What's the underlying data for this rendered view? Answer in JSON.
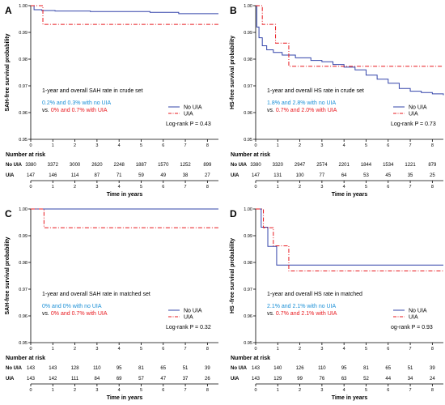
{
  "colors": {
    "no_uia": "#3344aa",
    "uia": "#e8191f",
    "blue_text": "#1a8fd6",
    "axis": "#000000"
  },
  "chart_data": [
    {
      "type": "line",
      "panel_label": "A",
      "ylabel": "SAH-free survival probability",
      "xlabel": "Time in years",
      "ylim": [
        0.95,
        1.0
      ],
      "xlim": [
        0,
        8.5
      ],
      "yticks": [
        "0.95",
        "0.96",
        "0.97",
        "0.98",
        "0.99",
        "1.00"
      ],
      "xticks": [
        "0",
        "1",
        "2",
        "3",
        "4",
        "5",
        "6",
        "7",
        "8"
      ],
      "grid": false,
      "legend_position": "bottom-right",
      "series": [
        {
          "name": "No UIA",
          "style": "solid",
          "x": [
            0,
            0.15,
            0.5,
            1.1,
            2.7,
            5.4,
            6.7,
            8.5
          ],
          "y": [
            1.0,
            0.9985,
            0.9982,
            0.998,
            0.9978,
            0.9975,
            0.997,
            0.997
          ]
        },
        {
          "name": "UIA",
          "style": "dash-dot",
          "x": [
            0,
            0.55,
            8.5
          ],
          "y": [
            1.0,
            0.993,
            0.993
          ]
        }
      ],
      "set_title": "1-year and overall SAH rate in crude set",
      "rate_no_uia": "0.2% and 0.3%  with no UIA",
      "rate_uia_prefix": "vs.",
      "rate_uia": " 0% and 0.7% with UIA",
      "logrank": "Log-rank P = 0.43",
      "risk_title": "Number at risk",
      "risk_labels": [
        "No UIA",
        "UIA"
      ],
      "risk_no_uia": [
        "3380",
        "3372",
        "3000",
        "2620",
        "2248",
        "1887",
        "1570",
        "1252",
        "899"
      ],
      "risk_uia": [
        "147",
        "146",
        "114",
        "87",
        "71",
        "59",
        "49",
        "38",
        "27"
      ]
    },
    {
      "type": "line",
      "panel_label": "B",
      "ylabel": "HS-free survival probability",
      "xlabel": "Time in years",
      "ylim": [
        0.95,
        1.0
      ],
      "xlim": [
        0,
        8.5
      ],
      "yticks": [
        "0.95",
        "0.96",
        "0.97",
        "0.98",
        "0.99",
        "1.00"
      ],
      "xticks": [
        "0",
        "1",
        "2",
        "3",
        "4",
        "5",
        "6",
        "7",
        "8"
      ],
      "grid": false,
      "legend_position": "bottom-right",
      "series": [
        {
          "name": "No UIA",
          "style": "solid",
          "x": [
            0,
            0.05,
            0.15,
            0.3,
            0.5,
            0.8,
            1.2,
            1.8,
            2.5,
            3.0,
            3.5,
            4.0,
            4.5,
            5.0,
            5.5,
            6.0,
            6.5,
            7.0,
            7.5,
            8.0,
            8.5
          ],
          "y": [
            1.0,
            0.992,
            0.988,
            0.985,
            0.9835,
            0.9825,
            0.9815,
            0.9805,
            0.9795,
            0.979,
            0.978,
            0.977,
            0.976,
            0.974,
            0.9725,
            0.971,
            0.969,
            0.968,
            0.9675,
            0.967,
            0.9665
          ]
        },
        {
          "name": "UIA",
          "style": "dash-dot",
          "x": [
            0,
            0.3,
            0.9,
            1.5,
            8.5
          ],
          "y": [
            1.0,
            0.993,
            0.986,
            0.9773,
            0.9773
          ]
        }
      ],
      "set_title": "1-year and overall HS rate in crude set",
      "rate_no_uia": "1.8% and 2.8%  with no UIA",
      "rate_uia_prefix": "vs.",
      "rate_uia": " 0.7% and 2.0% with UIA",
      "logrank": "Log-rank P = 0.73",
      "risk_title": "Number at risk",
      "risk_labels": [
        "No UIA",
        "UIA"
      ],
      "risk_no_uia": [
        "3380",
        "3320",
        "2947",
        "2574",
        "2201",
        "1844",
        "1534",
        "1221",
        "879"
      ],
      "risk_uia": [
        "147",
        "131",
        "100",
        "77",
        "64",
        "53",
        "45",
        "35",
        "25"
      ]
    },
    {
      "type": "line",
      "panel_label": "C",
      "ylabel": "SAH-free survival probability",
      "xlabel": "Time in years",
      "ylim": [
        0.95,
        1.0
      ],
      "xlim": [
        0,
        8.5
      ],
      "yticks": [
        "0.95",
        "0.96",
        "0.97",
        "0.98",
        "0.99",
        "1.00"
      ],
      "xticks": [
        "0",
        "1",
        "2",
        "3",
        "4",
        "5",
        "6",
        "7",
        "8"
      ],
      "grid": false,
      "legend_position": "bottom-right",
      "series": [
        {
          "name": "No UIA",
          "style": "solid",
          "x": [
            0,
            8.5
          ],
          "y": [
            1.0,
            1.0
          ]
        },
        {
          "name": "UIA",
          "style": "dash-dot",
          "x": [
            0,
            0.6,
            8.5
          ],
          "y": [
            1.0,
            0.993,
            0.993
          ]
        }
      ],
      "set_title": "1-year and overall SAH rate in matched set",
      "rate_no_uia": "0% and 0%  with no UIA",
      "rate_uia_prefix": "vs.",
      "rate_uia": " 0% and 0.7% with UIA",
      "logrank": "Log-rank P = 0.32",
      "risk_title": "Number at risk",
      "risk_labels": [
        "No UIA",
        "UIA"
      ],
      "risk_no_uia": [
        "143",
        "143",
        "128",
        "110",
        "95",
        "81",
        "65",
        "51",
        "39"
      ],
      "risk_uia": [
        "143",
        "142",
        "111",
        "84",
        "69",
        "57",
        "47",
        "37",
        "26"
      ]
    },
    {
      "type": "line",
      "panel_label": "D",
      "ylabel": "HS -free survival probability",
      "xlabel": "Time in years",
      "ylim": [
        0.95,
        1.0
      ],
      "xlim": [
        0,
        8.5
      ],
      "yticks": [
        "0.95",
        "0.96",
        "0.97",
        "0.98",
        "0.99",
        "1.00"
      ],
      "xticks": [
        "0",
        "1",
        "2",
        "3",
        "4",
        "5",
        "6",
        "7",
        "8"
      ],
      "grid": false,
      "legend_position": "bottom-right",
      "series": [
        {
          "name": "No UIA",
          "style": "solid",
          "x": [
            0,
            0.25,
            0.55,
            0.95,
            8.5
          ],
          "y": [
            1.0,
            0.9932,
            0.986,
            0.979,
            0.979
          ]
        },
        {
          "name": "UIA",
          "style": "dash-dot",
          "x": [
            0,
            0.35,
            0.8,
            1.5,
            8.5
          ],
          "y": [
            1.0,
            0.993,
            0.9862,
            0.9768,
            0.9768
          ]
        }
      ],
      "set_title": "1-year and overall HS rate in matched",
      "rate_no_uia": "2.1% and 2.1%  with no UIA",
      "rate_uia_prefix": "vs.",
      "rate_uia": " 0.7% and 2.1% with UIA",
      "logrank": "og-rank P = 0.93",
      "risk_title": "Number at risk",
      "risk_labels": [
        "No UIA",
        "UIA"
      ],
      "risk_no_uia": [
        "143",
        "140",
        "126",
        "110",
        "95",
        "81",
        "65",
        "51",
        "39"
      ],
      "risk_uia": [
        "143",
        "129",
        "99",
        "76",
        "63",
        "52",
        "44",
        "34",
        "24"
      ]
    }
  ]
}
